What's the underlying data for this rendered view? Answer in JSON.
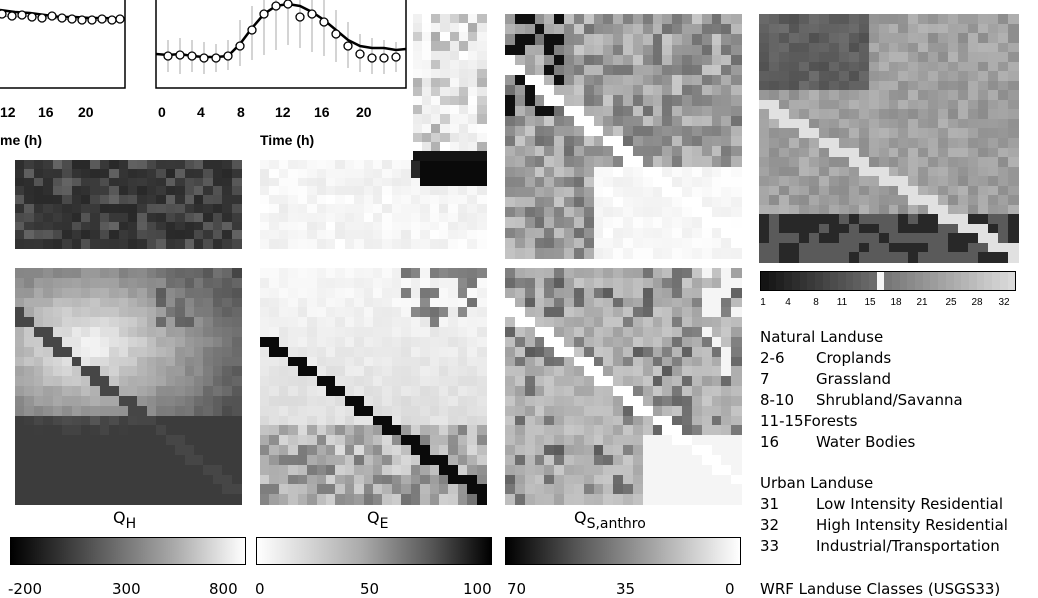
{
  "line_plots": {
    "left_ticks": [
      "12",
      "16",
      "20"
    ],
    "left_xlabel": "me (h)",
    "right_ticks": [
      "0",
      "4",
      "8",
      "12",
      "16",
      "20"
    ],
    "right_xlabel": "Time (h)"
  },
  "panels": {
    "qh": {
      "title_main": "Q",
      "title_sub": "H"
    },
    "qe": {
      "title_main": "Q",
      "title_sub": "E"
    },
    "qs": {
      "title_main": "Q",
      "title_sub": "S,anthro"
    }
  },
  "colorbars": {
    "qh": {
      "min": "-200",
      "mid": "300",
      "max": "800"
    },
    "qe": {
      "min": "0",
      "mid": "50",
      "max": "100"
    },
    "qs": {
      "min": "70",
      "mid": "35",
      "max": "0"
    }
  },
  "landuse_colorbar_ticks": [
    "1",
    "4",
    "8",
    "11",
    "15",
    "18",
    "21",
    "25",
    "28",
    "32"
  ],
  "legend": {
    "natural_heading": "Natural Landuse",
    "natural": [
      {
        "code": "2-6",
        "name": "Croplands"
      },
      {
        "code": "7",
        "name": "Grassland"
      },
      {
        "code": "8-10",
        "name": "Shrubland/Savanna"
      },
      {
        "code": "11-15",
        "name": "Forests"
      },
      {
        "code": "16",
        "name": "Water Bodies"
      }
    ],
    "urban_heading": "Urban Landuse",
    "urban": [
      {
        "code": "31",
        "name": "Low Intensity Residential"
      },
      {
        "code": "32",
        "name": "High Intensity Residential"
      },
      {
        "code": "33",
        "name": "Industrial/Transportation"
      }
    ],
    "footer": "WRF Landuse Classes (USGS33)"
  }
}
